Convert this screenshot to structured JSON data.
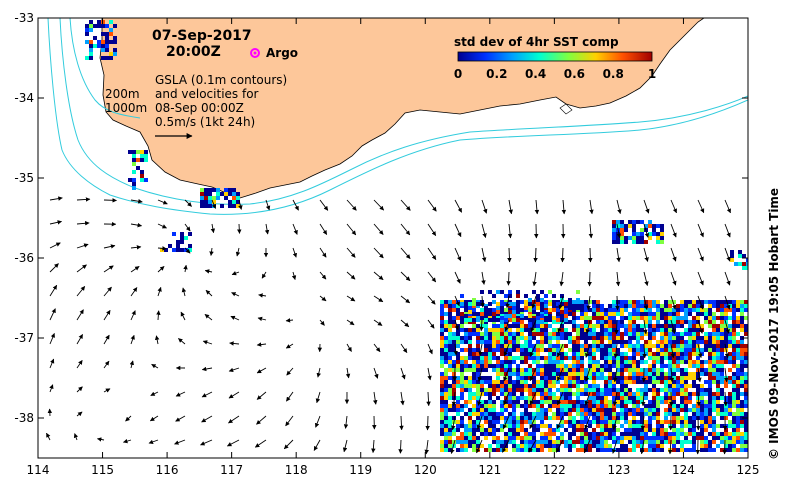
{
  "map": {
    "lon_range": [
      114,
      125
    ],
    "lat_range": [
      -38.5,
      -33
    ],
    "lon_ticks": [
      "114",
      "115",
      "116",
      "117",
      "118",
      "119",
      "120",
      "121",
      "122",
      "123",
      "124",
      "125"
    ],
    "lat_ticks": [
      "-33",
      "-34",
      "-35",
      "-36",
      "-37",
      "-38"
    ],
    "land_color": "#fdc79a",
    "contour_color": "#33ccdd",
    "arrow_color": "#000000"
  },
  "header": {
    "date": "07-Sep-2017",
    "time": "20:00Z",
    "argo_label": "Argo"
  },
  "depth_labels": {
    "d200": "200m",
    "d1000": "1000m"
  },
  "description": {
    "line1": "GSLA (0.1m contours)",
    "line2": "and velocities for",
    "line3": "08-Sep 00:00Z",
    "line4": "0.5m/s (1kt 24h)"
  },
  "colorbar": {
    "title": "std dev of 4hr SST comp",
    "ticks": [
      "0",
      "0.2",
      "0.4",
      "0.6",
      "0.8",
      "1"
    ],
    "colors": [
      "#000090",
      "#0030ff",
      "#00a0ff",
      "#00ffd0",
      "#80ff40",
      "#ffd000",
      "#ff5000",
      "#a00000"
    ]
  },
  "credit": "© IMOS 09-Nov-2017 19:05 Hobart Time"
}
